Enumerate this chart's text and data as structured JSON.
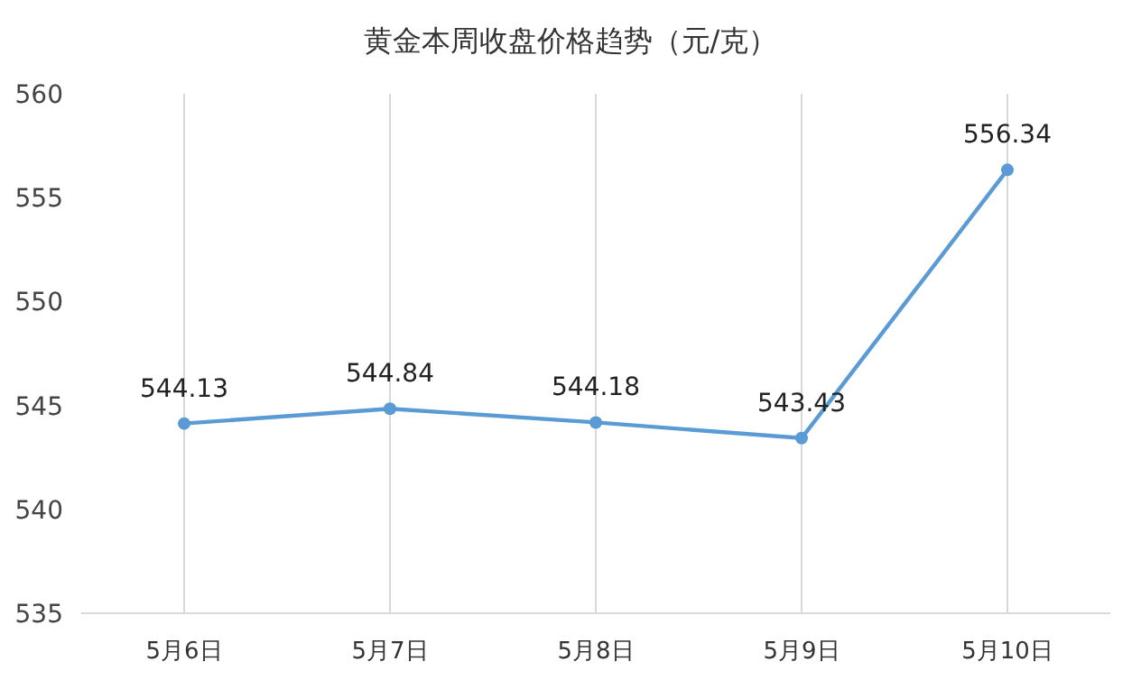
{
  "chart_data": {
    "type": "line",
    "title": "黄金本周收盘价格趋势（元/克）",
    "categories": [
      "5月6日",
      "5月7日",
      "5月8日",
      "5月9日",
      "5月10日"
    ],
    "values": [
      544.13,
      544.84,
      544.18,
      543.43,
      556.34
    ],
    "color": "#5b9bd5",
    "ylim": [
      535,
      560
    ],
    "yticks": [
      535,
      540,
      545,
      550,
      555,
      560
    ],
    "grid": "x",
    "marker": "circle",
    "data_labels": true
  }
}
